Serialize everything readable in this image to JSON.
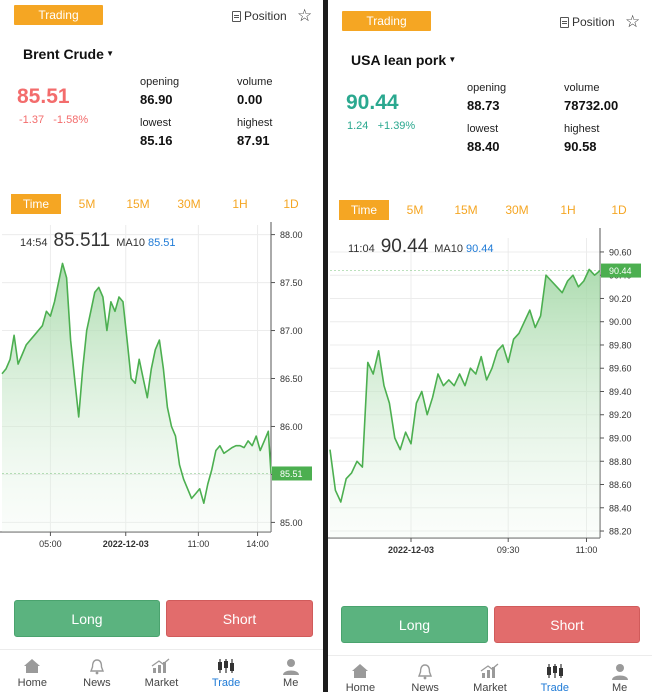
{
  "screens": [
    {
      "status_tag": "Trading",
      "position_label": "Position",
      "symbol": "Brent Crude",
      "price": "85.51",
      "change": "-1.37",
      "change_pct": "-1.58%",
      "trend": "down",
      "stats": {
        "opening_label": "opening",
        "opening": "86.90",
        "volume_label": "volume",
        "volume": "0.00",
        "lowest_label": "lowest",
        "lowest": "85.16",
        "highest_label": "highest",
        "highest": "87.91"
      },
      "tabs": [
        "Time",
        "5M",
        "15M",
        "30M",
        "1H",
        "1D"
      ],
      "active_tab": "Time",
      "chart_info": {
        "time": "14:54",
        "price": "85.511",
        "ma_label": "MA10",
        "ma_value": "85.51"
      },
      "buttons": {
        "long": "Long",
        "short": "Short"
      },
      "nav": [
        {
          "label": "Home",
          "icon": "home-icon"
        },
        {
          "label": "News",
          "icon": "bell-icon"
        },
        {
          "label": "Market",
          "icon": "market-chart-icon"
        },
        {
          "label": "Trade",
          "icon": "candlestick-icon"
        },
        {
          "label": "Me",
          "icon": "user-icon"
        }
      ],
      "active_nav": "Trade"
    },
    {
      "status_tag": "Trading",
      "position_label": "Position",
      "symbol": "USA lean pork",
      "price": "90.44",
      "change": "1.24",
      "change_pct": "+1.39%",
      "trend": "up",
      "stats": {
        "opening_label": "opening",
        "opening": "88.73",
        "volume_label": "volume",
        "volume": "78732.00",
        "lowest_label": "lowest",
        "lowest": "88.40",
        "highest_label": "highest",
        "highest": "90.58"
      },
      "tabs": [
        "Time",
        "5M",
        "15M",
        "30M",
        "1H",
        "1D"
      ],
      "active_tab": "Time",
      "chart_info": {
        "time": "11:04",
        "price": "90.44",
        "ma_label": "MA10",
        "ma_value": "90.44"
      },
      "buttons": {
        "long": "Long",
        "short": "Short"
      },
      "nav": [
        {
          "label": "Home",
          "icon": "home-icon"
        },
        {
          "label": "News",
          "icon": "bell-icon"
        },
        {
          "label": "Market",
          "icon": "market-chart-icon"
        },
        {
          "label": "Trade",
          "icon": "candlestick-icon"
        },
        {
          "label": "Me",
          "icon": "user-icon"
        }
      ],
      "active_nav": "Trade"
    }
  ],
  "colors": {
    "accent": "#f5a623",
    "down": "#f36c6c",
    "up": "#2aa88f",
    "line": "#4caf50",
    "link": "#1e7ad6",
    "long": "#5bb37f",
    "short": "#e26c6c"
  },
  "chart_data": [
    {
      "type": "area",
      "title": "",
      "y_ticks": [
        "88.00",
        "87.50",
        "87.00",
        "86.50",
        "86.00",
        "85.50",
        "85.00"
      ],
      "ylim": [
        84.9,
        88.1
      ],
      "x_ticks": [
        "05:00",
        "2022-12-03",
        "11:00",
        "14:00"
      ],
      "x_tick_positions": [
        0.18,
        0.46,
        0.73,
        0.95
      ],
      "current_price_label": "85.51",
      "current_price": 85.51,
      "grid": true,
      "series": [
        {
          "x": [
            0,
            0.015,
            0.03,
            0.045,
            0.06,
            0.075,
            0.09,
            0.105,
            0.12,
            0.135,
            0.15,
            0.165,
            0.18,
            0.195,
            0.21,
            0.225,
            0.24,
            0.255,
            0.27,
            0.285,
            0.3,
            0.315,
            0.33,
            0.345,
            0.36,
            0.375,
            0.39,
            0.405,
            0.42,
            0.435,
            0.45,
            0.465,
            0.48,
            0.495,
            0.51,
            0.525,
            0.54,
            0.555,
            0.57,
            0.585,
            0.6,
            0.615,
            0.63,
            0.645,
            0.66,
            0.675,
            0.69,
            0.705,
            0.72,
            0.735,
            0.75,
            0.765,
            0.78,
            0.795,
            0.81,
            0.825,
            0.84,
            0.855,
            0.87,
            0.885,
            0.9,
            0.915,
            0.93,
            0.945,
            0.96,
            0.975,
            0.99,
            1.0
          ],
          "values": [
            86.55,
            86.6,
            86.7,
            86.95,
            86.65,
            86.75,
            86.85,
            86.9,
            86.95,
            87.0,
            87.05,
            87.2,
            87.15,
            87.3,
            87.5,
            87.7,
            87.55,
            86.9,
            86.5,
            86.1,
            86.6,
            87.0,
            87.2,
            87.4,
            87.45,
            87.35,
            87.0,
            87.3,
            87.2,
            87.35,
            87.3,
            86.9,
            86.5,
            86.45,
            86.7,
            86.5,
            86.3,
            86.6,
            86.8,
            86.9,
            86.6,
            86.2,
            86.0,
            85.9,
            85.6,
            85.45,
            85.35,
            85.25,
            85.3,
            85.35,
            85.2,
            85.4,
            85.55,
            85.75,
            85.8,
            85.72,
            85.75,
            85.78,
            85.8,
            85.8,
            85.78,
            85.85,
            85.8,
            85.9,
            85.75,
            85.85,
            85.95,
            85.51
          ]
        }
      ]
    },
    {
      "type": "area",
      "title": "",
      "y_ticks": [
        "90.60",
        "90.40",
        "90.20",
        "90.00",
        "89.80",
        "89.60",
        "89.40",
        "89.20",
        "89.00",
        "88.80",
        "88.60",
        "88.40",
        "88.20"
      ],
      "ylim": [
        88.14,
        90.72
      ],
      "x_ticks": [
        "2022-12-03",
        "09:30",
        "11:00"
      ],
      "x_tick_positions": [
        0.3,
        0.66,
        0.95
      ],
      "current_price_label": "90.44",
      "current_price": 90.44,
      "grid": true,
      "series": [
        {
          "x": [
            0,
            0.02,
            0.04,
            0.06,
            0.08,
            0.1,
            0.12,
            0.14,
            0.16,
            0.18,
            0.2,
            0.22,
            0.24,
            0.26,
            0.28,
            0.3,
            0.32,
            0.34,
            0.36,
            0.38,
            0.4,
            0.42,
            0.44,
            0.46,
            0.48,
            0.5,
            0.52,
            0.54,
            0.56,
            0.58,
            0.6,
            0.62,
            0.64,
            0.66,
            0.68,
            0.7,
            0.72,
            0.74,
            0.76,
            0.78,
            0.8,
            0.82,
            0.84,
            0.86,
            0.88,
            0.9,
            0.92,
            0.94,
            0.96,
            0.98,
            1.0
          ],
          "values": [
            88.9,
            88.55,
            88.45,
            88.65,
            88.7,
            88.8,
            88.75,
            89.65,
            89.55,
            89.75,
            89.45,
            89.3,
            89.0,
            88.9,
            89.05,
            88.95,
            89.3,
            89.4,
            89.2,
            89.35,
            89.55,
            89.45,
            89.5,
            89.45,
            89.55,
            89.45,
            89.6,
            89.55,
            89.7,
            89.5,
            89.6,
            89.75,
            89.8,
            89.65,
            89.85,
            89.9,
            90.0,
            90.1,
            89.95,
            90.05,
            90.4,
            90.35,
            90.3,
            90.25,
            90.35,
            90.4,
            90.3,
            90.35,
            90.45,
            90.4,
            90.44
          ]
        }
      ]
    }
  ]
}
